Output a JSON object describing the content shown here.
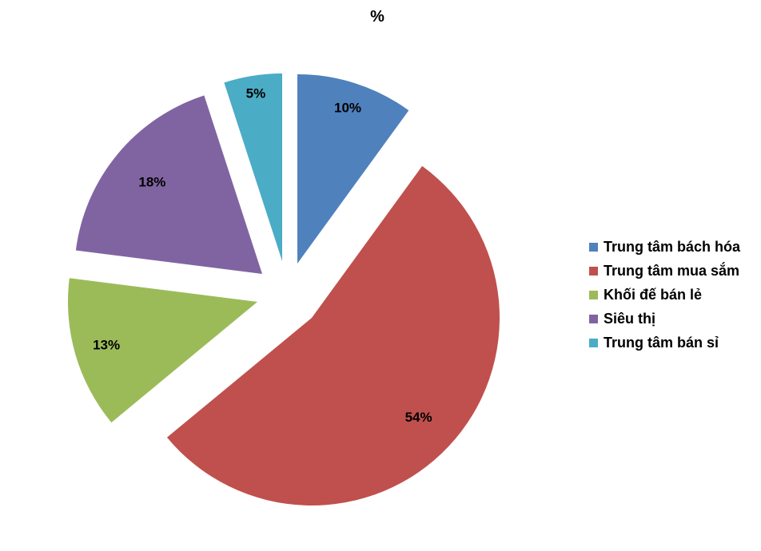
{
  "chart_data": {
    "type": "pie",
    "title": "%",
    "categories": [
      "Trung tâm bách hóa",
      "Trung tâm mua sắm",
      "Khối đế bán lẻ",
      "Siêu thị",
      "Trung tâm bán sỉ"
    ],
    "values": [
      10,
      54,
      13,
      18,
      5
    ],
    "labels": [
      "10%",
      "54%",
      "13%",
      "18%",
      "5%"
    ],
    "colors": [
      "#4F81BD",
      "#C0504D",
      "#9BBB59",
      "#8064A2",
      "#4BACC6"
    ],
    "exploded": true,
    "legend_position": "right"
  }
}
